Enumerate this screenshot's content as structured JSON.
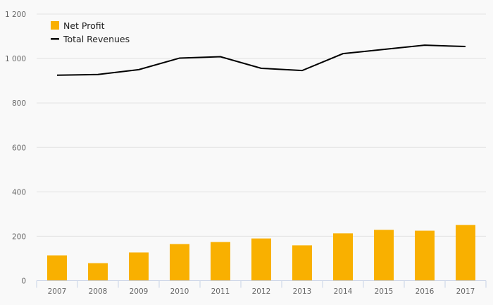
{
  "chart_data": {
    "type": "bar",
    "title": "",
    "xlabel": "",
    "ylabel": "",
    "ylim": [
      0,
      1200
    ],
    "yticks": [
      0,
      200,
      400,
      600,
      800,
      1000,
      1200
    ],
    "ytick_labels": [
      "0",
      "200",
      "400",
      "600",
      "800",
      "1 000",
      "1 200"
    ],
    "grid": true,
    "legend_position": "top-left",
    "categories": [
      "2007",
      "2008",
      "2009",
      "2010",
      "2011",
      "2012",
      "2013",
      "2014",
      "2015",
      "2016",
      "2017"
    ],
    "series": [
      {
        "name": "Net Profit",
        "type": "bar",
        "color": "#f9b000",
        "values": [
          114,
          79,
          127,
          165,
          174,
          190,
          159,
          213,
          229,
          225,
          251
        ]
      },
      {
        "name": "Total Revenues",
        "type": "line",
        "color": "#000000",
        "values": [
          925,
          928,
          950,
          1002,
          1008,
          956,
          946,
          1022,
          1041,
          1060,
          1054
        ]
      }
    ]
  }
}
